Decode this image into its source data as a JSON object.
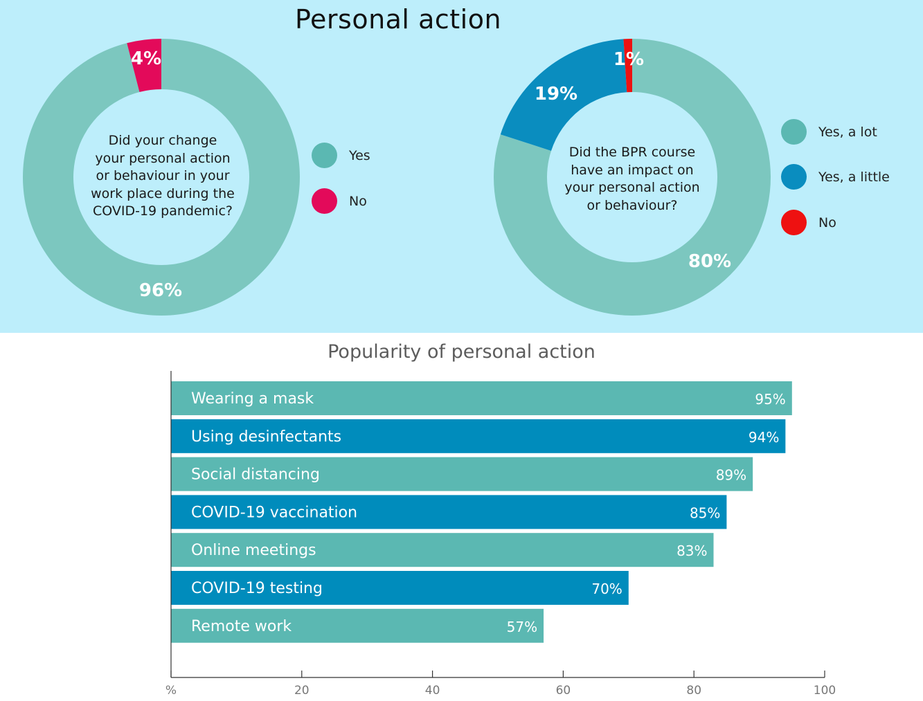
{
  "page_title": "Personal action",
  "colors": {
    "teal": "#7cc7bf",
    "pink": "#e30a5a",
    "blue": "#0a8dbf",
    "red": "#ee1111",
    "bar_teal": "#5bb8b2",
    "bar_blue": "#008cbc",
    "panel_bg": "#bdeefb"
  },
  "chart_data": [
    {
      "type": "pie",
      "style": "donut",
      "question": "Did your change your personal action or behaviour in your work place during the COVID-19 pandemic?",
      "question_lines": [
        "Did your change",
        "your personal action",
        "or behaviour in your",
        "work place during the",
        "COVID-19 pandemic?"
      ],
      "slices": [
        {
          "label": "Yes",
          "value": 96,
          "display": "96%",
          "color": "#7cc7bf"
        },
        {
          "label": "No",
          "value": 4,
          "display": "4%",
          "color": "#e30a5a"
        }
      ],
      "legend": [
        "Yes",
        "No"
      ]
    },
    {
      "type": "pie",
      "style": "donut",
      "question": "Did the BPR course have an impact on your personal action or behaviour?",
      "question_lines": [
        "Did the BPR course",
        "have an impact on",
        "your personal action",
        "or behaviour?"
      ],
      "slices": [
        {
          "label": "Yes, a lot",
          "value": 80,
          "display": "80%",
          "color": "#7cc7bf"
        },
        {
          "label": "Yes, a little",
          "value": 19,
          "display": "19%",
          "color": "#0a8dbf"
        },
        {
          "label": "No",
          "value": 1,
          "display": "1%",
          "color": "#ee1111"
        }
      ],
      "legend": [
        "Yes, a lot",
        "Yes, a little",
        "No"
      ]
    },
    {
      "type": "bar",
      "orientation": "horizontal",
      "title": "Popularity of personal action",
      "xlabel": "%",
      "xlim": [
        0,
        100
      ],
      "xticks": [
        {
          "value": 0,
          "label": "%"
        },
        {
          "value": 20,
          "label": "20"
        },
        {
          "value": 40,
          "label": "40"
        },
        {
          "value": 60,
          "label": "60"
        },
        {
          "value": 80,
          "label": "80"
        },
        {
          "value": 100,
          "label": "100"
        }
      ],
      "categories": [
        "Wearing a mask",
        "Using desinfectants",
        "Social distancing",
        "COVID-19 vaccination",
        "Online meetings",
        "COVID-19 testing",
        "Remote work"
      ],
      "values": [
        95,
        94,
        89,
        85,
        83,
        70,
        57
      ],
      "value_labels": [
        "95%",
        "94%",
        "89%",
        "85%",
        "83%",
        "70%",
        "57%"
      ]
    }
  ]
}
